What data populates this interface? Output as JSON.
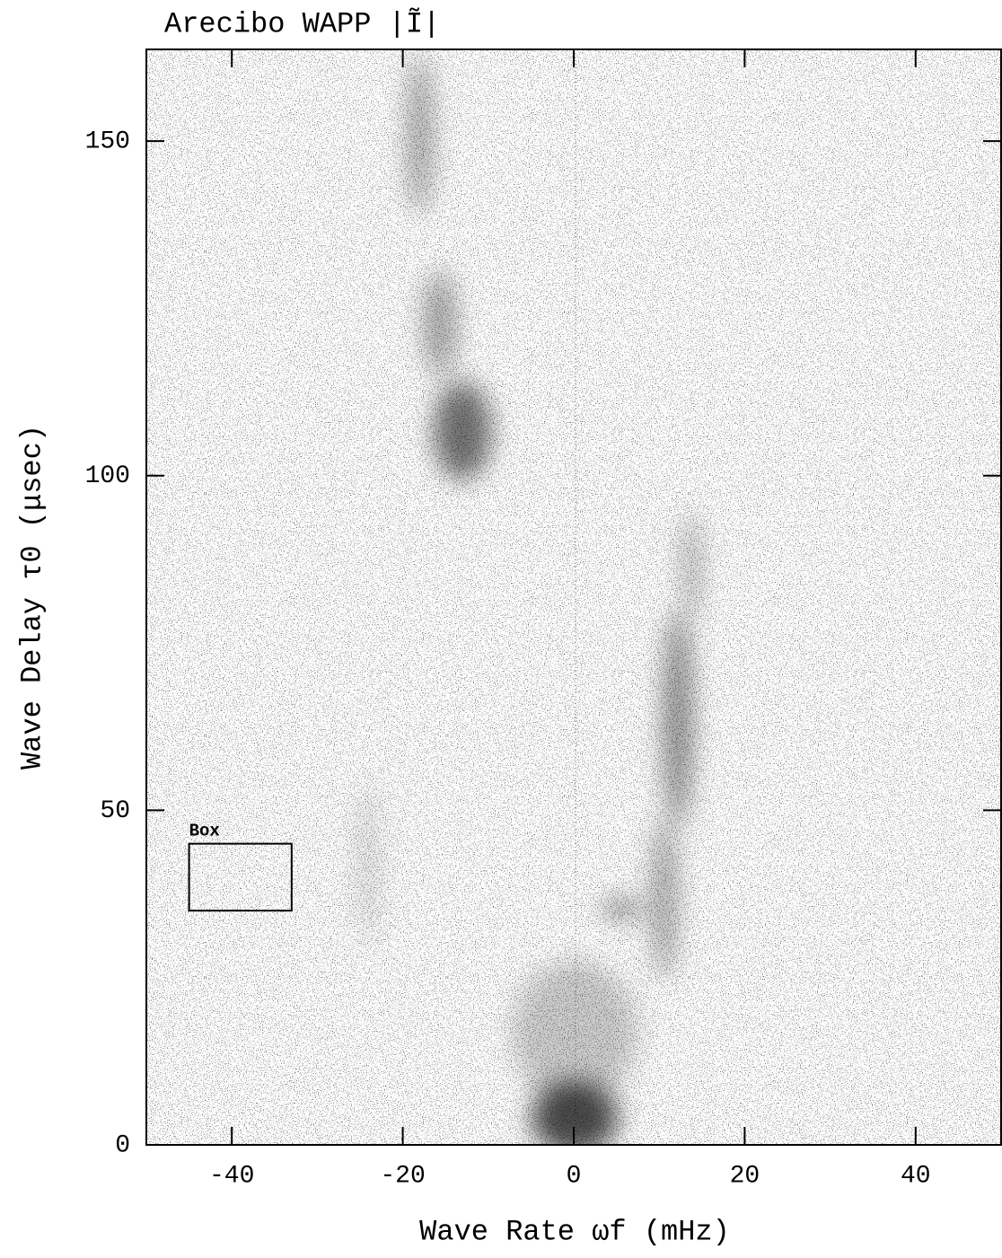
{
  "chart_data": {
    "type": "heatmap",
    "title": "Arecibo WAPP |Ĩ|",
    "x_label": "Wave Rate ωf (mHz)",
    "y_label": "Wave Delay τ0 (μsec)",
    "xlim": [
      -50,
      50
    ],
    "xticks": [
      -40,
      -20,
      0,
      20,
      40
    ],
    "ylim": [
      0,
      163.7
    ],
    "yticks": [
      0,
      50,
      100,
      150
    ],
    "annotations": [
      {
        "text": "Box",
        "x": [
          -45,
          -33
        ],
        "y": [
          35,
          45
        ]
      }
    ]
  }
}
